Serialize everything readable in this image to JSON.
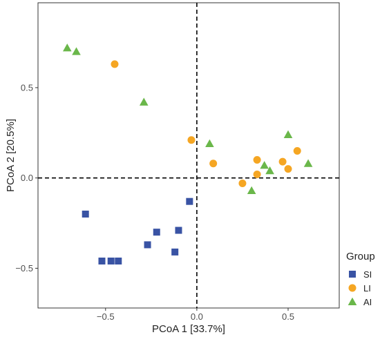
{
  "chart_data": {
    "type": "scatter",
    "title": "",
    "xlabel": "PCoA 1 [33.7%]",
    "ylabel": "PCoA 2 [20.5%]",
    "xlim": [
      -0.87,
      0.78
    ],
    "ylim": [
      -0.72,
      0.97
    ],
    "xticks": [
      -0.5,
      0.0,
      0.5
    ],
    "yticks": [
      -0.5,
      0.0,
      0.5
    ],
    "xtick_labels": [
      "−0.5",
      "0.0",
      "0.5"
    ],
    "ytick_labels": [
      "−0.5",
      "0.0",
      "0.5"
    ],
    "grid": false,
    "reference_lines": {
      "x": 0,
      "y": 0,
      "style": "dashed"
    },
    "legend": {
      "title": "Group",
      "position": "right"
    },
    "series": [
      {
        "name": "SI",
        "marker": "square",
        "color": "#3953a4",
        "points": [
          [
            -0.61,
            -0.2
          ],
          [
            -0.04,
            -0.13
          ],
          [
            -0.22,
            -0.3
          ],
          [
            -0.1,
            -0.29
          ],
          [
            -0.27,
            -0.37
          ],
          [
            -0.12,
            -0.41
          ],
          [
            -0.52,
            -0.46
          ],
          [
            -0.47,
            -0.46
          ],
          [
            -0.43,
            -0.46
          ]
        ]
      },
      {
        "name": "LI",
        "marker": "circle",
        "color": "#f5a623",
        "points": [
          [
            -0.45,
            0.63
          ],
          [
            -0.03,
            0.21
          ],
          [
            0.09,
            0.08
          ],
          [
            0.33,
            0.1
          ],
          [
            0.47,
            0.09
          ],
          [
            0.55,
            0.15
          ],
          [
            0.5,
            0.05
          ],
          [
            0.33,
            0.02
          ],
          [
            0.25,
            -0.03
          ]
        ]
      },
      {
        "name": "AI",
        "marker": "triangle",
        "color": "#6ab74a",
        "points": [
          [
            -0.71,
            0.72
          ],
          [
            -0.66,
            0.7
          ],
          [
            -0.29,
            0.42
          ],
          [
            0.07,
            0.19
          ],
          [
            0.5,
            0.24
          ],
          [
            0.61,
            0.08
          ],
          [
            0.37,
            0.07
          ],
          [
            0.4,
            0.04
          ],
          [
            0.3,
            -0.07
          ]
        ]
      }
    ]
  }
}
